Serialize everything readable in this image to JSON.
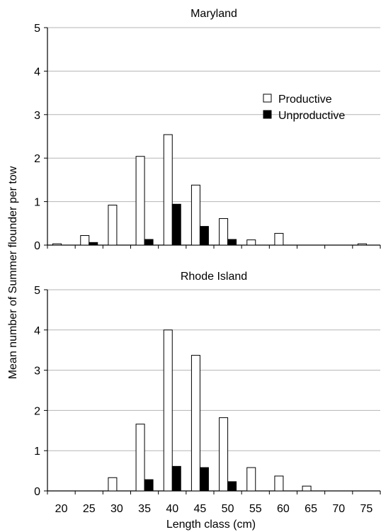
{
  "chart_data": {
    "type": "bar",
    "xlabel": "Length class (cm)",
    "ylabel": "Mean number of Summer flounder per tow",
    "categories": [
      "20",
      "25",
      "30",
      "35",
      "40",
      "45",
      "50",
      "55",
      "60",
      "65",
      "70",
      "75"
    ],
    "ylim": [
      0,
      5
    ],
    "yticks": [
      "0",
      "1",
      "2",
      "3",
      "4",
      "5"
    ],
    "grid": "horizontal",
    "legend": {
      "placement": "top-right",
      "entries": [
        {
          "name": "Productive",
          "fill": "#ffffff"
        },
        {
          "name": "Unproductive",
          "fill": "#000000"
        }
      ]
    },
    "panels": [
      {
        "title": "Maryland",
        "series": [
          {
            "name": "Productive",
            "values": [
              0.03,
              0.22,
              0.92,
              2.04,
              2.54,
              1.38,
              0.61,
              0.12,
              0.27,
              0,
              0,
              0.03
            ]
          },
          {
            "name": "Unproductive",
            "values": [
              0,
              0.06,
              0,
              0.13,
              0.94,
              0.43,
              0.13,
              0,
              0,
              0,
              0,
              0
            ]
          }
        ]
      },
      {
        "title": "Rhode Island",
        "series": [
          {
            "name": "Productive",
            "values": [
              0,
              0,
              0.33,
              1.66,
              4.0,
              3.37,
              1.82,
              0.58,
              0.37,
              0.12,
              0,
              0
            ]
          },
          {
            "name": "Unproductive",
            "values": [
              0,
              0,
              0,
              0.28,
              0.61,
              0.58,
              0.23,
              0,
              0,
              0,
              0,
              0
            ]
          }
        ]
      }
    ]
  }
}
